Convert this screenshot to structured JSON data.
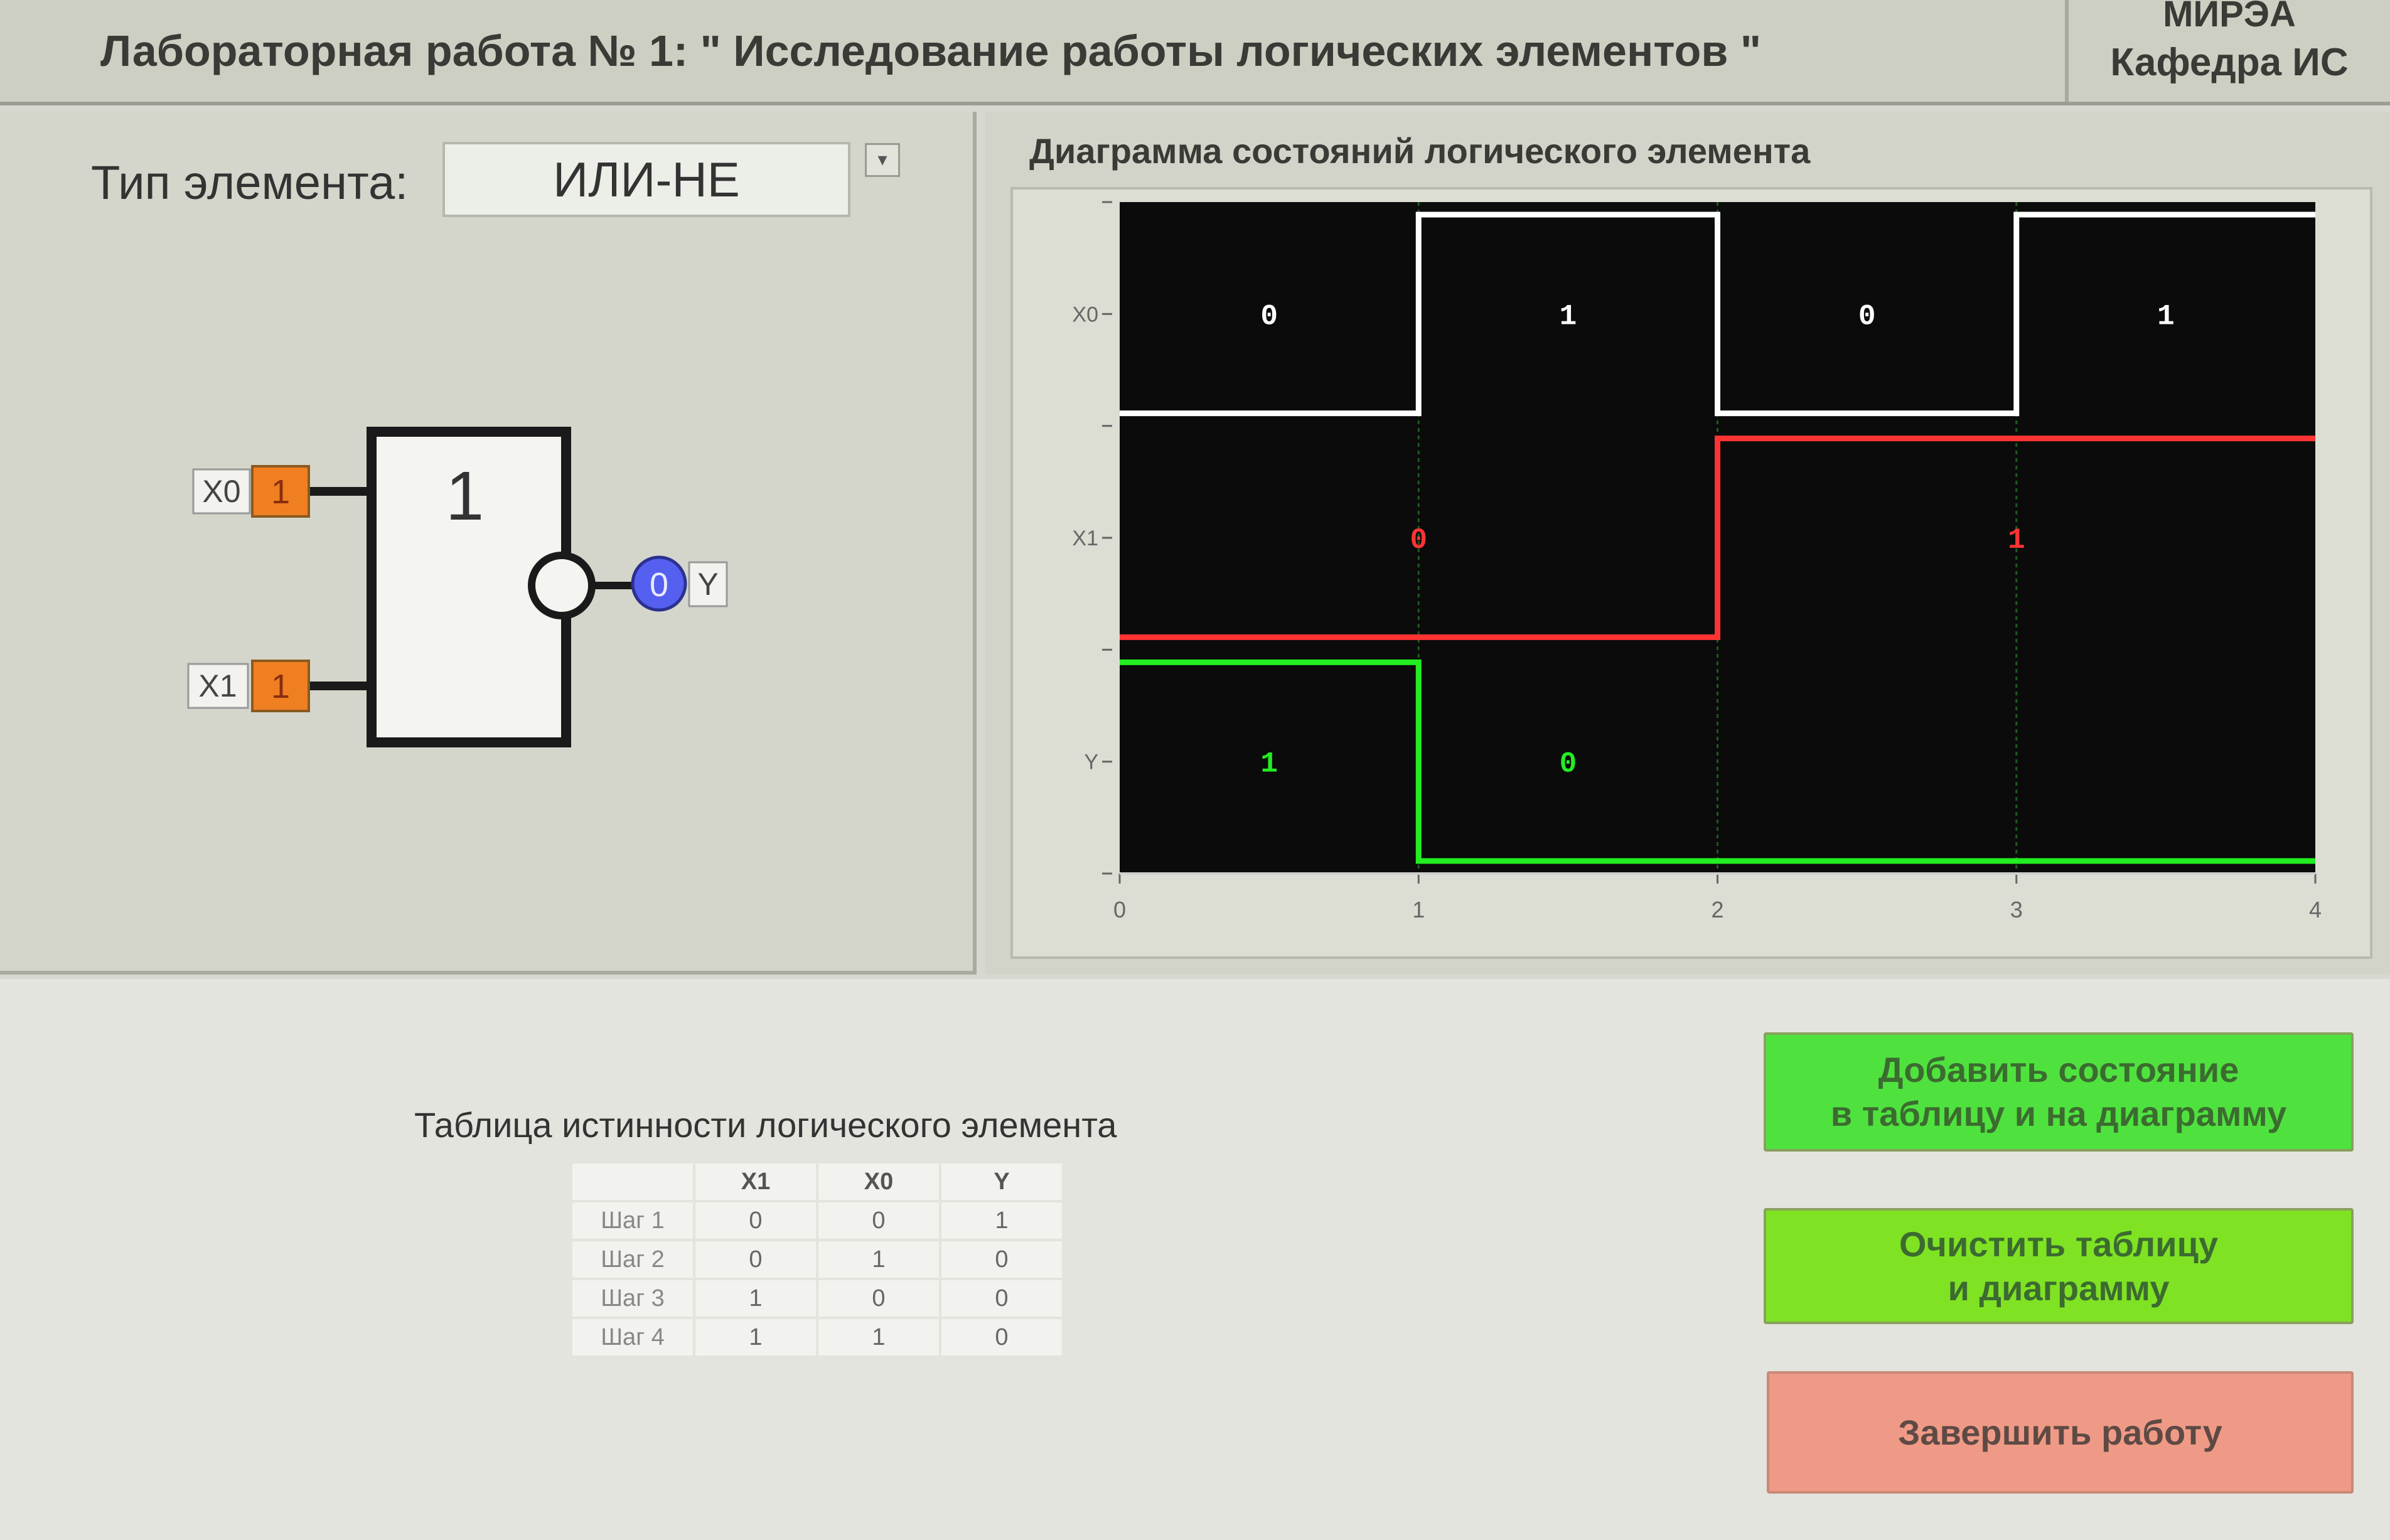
{
  "header": {
    "title": "Лабораторная работа № 1: \" Исследование работы логических элементов \"",
    "org_line1": "МИРЭА",
    "org_line2": "Кафедра ИС"
  },
  "element": {
    "type_label": "Тип элемента:",
    "type_value": "ИЛИ-НЕ",
    "dropdown_arrow": "▾",
    "gate_symbol": "1",
    "inputs": [
      {
        "name": "X0",
        "value": "1"
      },
      {
        "name": "X1",
        "value": "1"
      }
    ],
    "output": {
      "name": "Y",
      "value": "0"
    },
    "colors": {
      "input_value": "#f07f22",
      "output_led": "#5560f0"
    }
  },
  "chart_data": {
    "type": "line",
    "title": "Диаграмма состояний логического элемента",
    "x_ticks": [
      "0",
      "1",
      "2",
      "3",
      "4"
    ],
    "xlim": [
      0,
      4
    ],
    "signals": [
      {
        "name": "X0",
        "color": "#ffffff",
        "steps": [
          0,
          1,
          0,
          1
        ],
        "labels": [
          "0",
          "1",
          "0",
          "1"
        ]
      },
      {
        "name": "X1",
        "color": "#ff3333",
        "steps": [
          0,
          0,
          1,
          1
        ],
        "labels": [
          "0",
          "1"
        ]
      },
      {
        "name": "Y",
        "color": "#22ee22",
        "steps": [
          1,
          0,
          0,
          0
        ],
        "labels": [
          "1",
          "0"
        ]
      }
    ]
  },
  "table": {
    "caption": "Таблица истинности логического элемента",
    "headers": [
      "",
      "X1",
      "X0",
      "Y"
    ],
    "rows": [
      [
        "Шаг 1",
        "0",
        "0",
        "1"
      ],
      [
        "Шаг 2",
        "0",
        "1",
        "0"
      ],
      [
        "Шаг 3",
        "1",
        "0",
        "0"
      ],
      [
        "Шаг 4",
        "1",
        "1",
        "0"
      ]
    ]
  },
  "buttons": {
    "add_line1": "Добавить состояние",
    "add_line2": "в таблицу и на диаграмму",
    "clear_line1": "Очистить таблицу",
    "clear_line2": "и диаграмму",
    "finish": "Завершить работу"
  }
}
